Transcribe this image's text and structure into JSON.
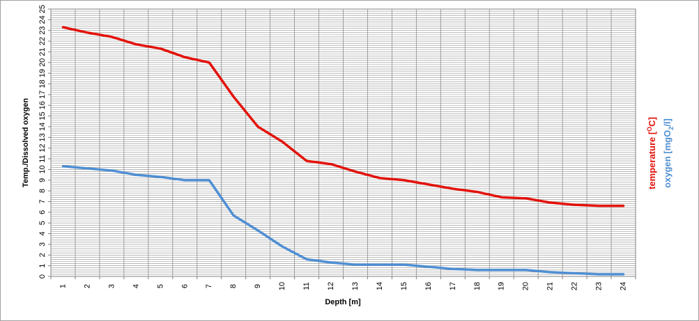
{
  "chart_data": {
    "type": "line",
    "x": [
      1,
      2,
      3,
      4,
      5,
      6,
      7,
      8,
      9,
      10,
      11,
      12,
      13,
      14,
      15,
      16,
      17,
      18,
      19,
      20,
      21,
      22,
      23,
      24
    ],
    "xlabel": "Depth [m]",
    "ylabel": "Temp./Dissolved oxygen",
    "ylim": [
      0,
      25
    ],
    "yticks": [
      0,
      1,
      2,
      3,
      4,
      5,
      6,
      7,
      8,
      9,
      10,
      11,
      12,
      13,
      14,
      15,
      16,
      17,
      18,
      19,
      20,
      21,
      22,
      23,
      24,
      25
    ],
    "grid": true,
    "series": [
      {
        "name": "temperature [OC]",
        "name_base": "temperature [",
        "name_sup": "O",
        "name_end": "C]",
        "color": "#e3120b",
        "values": [
          23.3,
          22.8,
          22.4,
          21.7,
          21.3,
          20.5,
          20.0,
          16.8,
          14.0,
          12.6,
          10.8,
          10.5,
          9.8,
          9.2,
          9.0,
          8.6,
          8.2,
          7.9,
          7.4,
          7.3,
          6.9,
          6.7,
          6.6,
          6.6
        ]
      },
      {
        "name": "oxygen [mgO2/l]",
        "name_base": "oxygen [mgO",
        "name_sub": "2",
        "name_end": "/l]",
        "color": "#4f8fd3",
        "values": [
          10.3,
          10.1,
          9.9,
          9.5,
          9.3,
          9.0,
          9.0,
          5.7,
          4.3,
          2.8,
          1.6,
          1.3,
          1.1,
          1.1,
          1.1,
          0.9,
          0.7,
          0.6,
          0.6,
          0.6,
          0.4,
          0.3,
          0.2,
          0.2
        ]
      }
    ]
  }
}
